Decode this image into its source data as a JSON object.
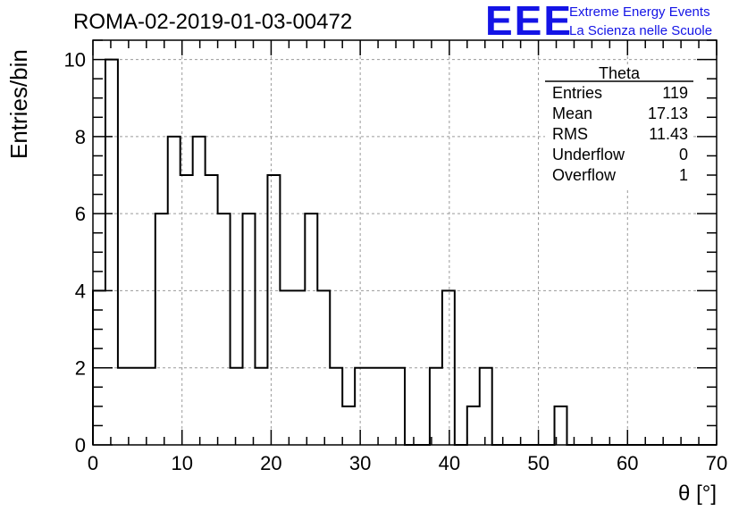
{
  "header": {
    "run_title": "ROMA-02-2019-01-03-00472"
  },
  "logo": {
    "letters": "EEE",
    "line1": "Extreme Energy Events",
    "line2": "La Scienza nelle Scuole",
    "color": "#1414e6"
  },
  "stats_box": {
    "title": "Theta",
    "rows": [
      {
        "label": "Entries",
        "value": "119"
      },
      {
        "label": "Mean",
        "value": "17.13"
      },
      {
        "label": "RMS",
        "value": "11.43"
      },
      {
        "label": "Underflow",
        "value": "0"
      },
      {
        "label": "Overflow",
        "value": "1"
      }
    ]
  },
  "chart_data": {
    "type": "histogram",
    "title": "ROMA-02-2019-01-03-00472",
    "xlabel": "θ [°]",
    "ylabel": "Entries/bin",
    "xlim": [
      0,
      70
    ],
    "ylim": [
      0,
      10.5
    ],
    "grid": true,
    "bin_width": 1.4,
    "bin_start": 0,
    "x_ticks": [
      0,
      10,
      20,
      30,
      40,
      50,
      60,
      70
    ],
    "y_ticks": [
      0,
      2,
      4,
      6,
      8,
      10
    ],
    "values": [
      4,
      10,
      2,
      2,
      2,
      6,
      8,
      7,
      8,
      7,
      6,
      2,
      6,
      2,
      7,
      4,
      4,
      6,
      4,
      2,
      1,
      2,
      2,
      2,
      2,
      0,
      0,
      2,
      4,
      0,
      1,
      2,
      0,
      0,
      0,
      0,
      0,
      1,
      0,
      0,
      0,
      0,
      0,
      0,
      0,
      0,
      0,
      0,
      0,
      0
    ],
    "line_color": "#000000"
  }
}
